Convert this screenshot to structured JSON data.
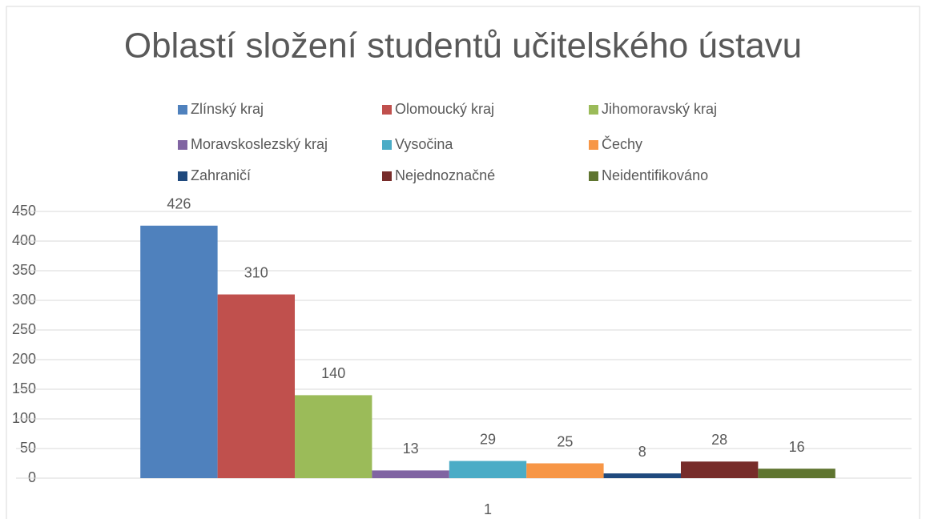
{
  "chart_data": {
    "type": "bar",
    "title": "Oblastí složení studentů učitelského ústavu",
    "categories": [
      "1"
    ],
    "series": [
      {
        "name": "Zlínský kraj",
        "color": "#4f81bd",
        "values": [
          426
        ]
      },
      {
        "name": "Olomoucký kraj",
        "color": "#c0504d",
        "values": [
          310
        ]
      },
      {
        "name": "Jihomoravský kraj",
        "color": "#9bbb59",
        "values": [
          140
        ]
      },
      {
        "name": "Moravskoslezský kraj",
        "color": "#8064a2",
        "values": [
          13
        ]
      },
      {
        "name": "Vysočina",
        "color": "#4bacc6",
        "values": [
          29
        ]
      },
      {
        "name": "Čechy",
        "color": "#f79646",
        "values": [
          25
        ]
      },
      {
        "name": "Zahraničí",
        "color": "#1f497d",
        "values": [
          8
        ]
      },
      {
        "name": "Nejednoznačné",
        "color": "#772c2a",
        "values": [
          28
        ]
      },
      {
        "name": "Neidentifikováno",
        "color": "#5f7530",
        "values": [
          16
        ]
      }
    ],
    "ylim": [
      0,
      450
    ],
    "yticks": [
      0,
      50,
      100,
      150,
      200,
      250,
      300,
      350,
      400,
      450
    ],
    "grid": true,
    "legend": "top"
  }
}
